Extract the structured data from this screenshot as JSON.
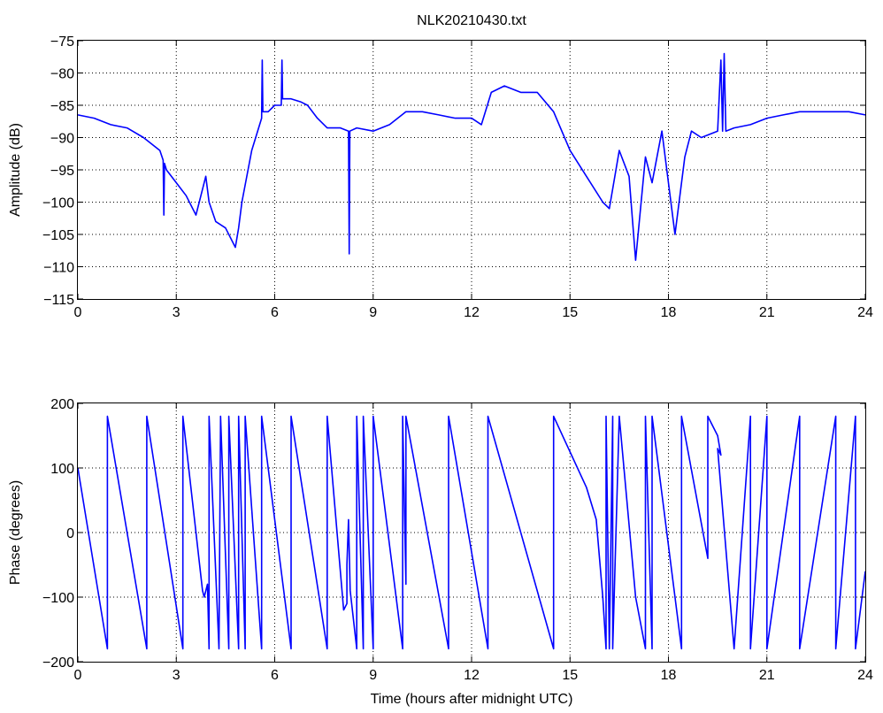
{
  "chart_data": [
    {
      "type": "line",
      "title": "NLK20210430.txt",
      "xlabel": "",
      "ylabel": "Amplitude (dB)",
      "xlim": [
        0,
        24
      ],
      "ylim": [
        -115,
        -75
      ],
      "grid": true,
      "x_ticks": [
        0,
        3,
        6,
        9,
        12,
        15,
        18,
        21,
        24
      ],
      "x_tick_labels": [
        "0",
        "3",
        "6",
        "9",
        "12",
        "15",
        "18",
        "21",
        "24"
      ],
      "y_ticks": [
        -115,
        -110,
        -105,
        -100,
        -95,
        -90,
        -85,
        -80,
        -75
      ],
      "y_tick_labels": [
        "−115",
        "−110",
        "−105",
        "−100",
        "−95",
        "−90",
        "−85",
        "−80",
        "−75"
      ],
      "color": "#0000ff",
      "series": [
        {
          "x": [
            0,
            0.5,
            1,
            1.5,
            2,
            2.5,
            2.6,
            2.62,
            2.64,
            2.7,
            3.0,
            3.3,
            3.6,
            3.9,
            4.0,
            4.2,
            4.5,
            4.8,
            4.9,
            5.0,
            5.3,
            5.6,
            5.62,
            5.64,
            5.8,
            6.0,
            6.2,
            6.22,
            6.24,
            6.5,
            6.8,
            7.0,
            7.3,
            7.6,
            8.0,
            8.25,
            8.27,
            8.29,
            8.5,
            9.0,
            9.5,
            10.0,
            10.5,
            11.0,
            11.5,
            12.0,
            12.3,
            12.6,
            13.0,
            13.5,
            14.0,
            14.5,
            15.0,
            15.5,
            16.0,
            16.2,
            16.5,
            16.8,
            17.0,
            17.3,
            17.5,
            17.8,
            18.2,
            18.5,
            18.7,
            19.0,
            19.5,
            19.6,
            19.65,
            19.7,
            19.75,
            20.0,
            20.5,
            21.0,
            21.5,
            22.0,
            22.5,
            23.0,
            23.5,
            24.0
          ],
          "y": [
            -86.5,
            -87,
            -88,
            -88.5,
            -90,
            -92,
            -93.5,
            -102,
            -94,
            -95,
            -97,
            -99,
            -102,
            -96,
            -100,
            -103,
            -104,
            -107,
            -104,
            -100,
            -92,
            -87,
            -78,
            -86,
            -86,
            -85,
            -85,
            -78,
            -84,
            -84,
            -84.5,
            -85,
            -87,
            -88.5,
            -88.5,
            -89,
            -108,
            -89,
            -88.5,
            -89,
            -88,
            -86,
            -86,
            -86.5,
            -87,
            -87,
            -88,
            -83,
            -82,
            -83,
            -83,
            -86,
            -92,
            -96,
            -100,
            -101,
            -92,
            -96,
            -109,
            -93,
            -97,
            -89,
            -105,
            -93,
            -89,
            -90,
            -89,
            -78,
            -89,
            -77,
            -89,
            -88.5,
            -88,
            -87,
            -86.5,
            -86,
            -86,
            -86,
            -86,
            -86.5
          ]
        }
      ]
    },
    {
      "type": "line",
      "title": "",
      "xlabel": "Time (hours after midnight UTC)",
      "ylabel": "Phase (degrees)",
      "xlim": [
        0,
        24
      ],
      "ylim": [
        -200,
        200
      ],
      "grid": true,
      "x_ticks": [
        0,
        3,
        6,
        9,
        12,
        15,
        18,
        21,
        24
      ],
      "x_tick_labels": [
        "0",
        "3",
        "6",
        "9",
        "12",
        "15",
        "18",
        "21",
        "24"
      ],
      "y_ticks": [
        -200,
        -100,
        0,
        100,
        200
      ],
      "y_tick_labels": [
        "−200",
        "−100",
        "0",
        "100",
        "200"
      ],
      "color": "#0000ff",
      "series": [
        {
          "x": [
            0,
            0.9,
            0.9,
            2.1,
            2.1,
            3.2,
            3.2,
            3.8,
            3.85,
            3.95,
            4.0,
            4.0,
            4.3,
            4.35,
            4.6,
            4.6,
            4.9,
            4.9,
            5.1,
            5.1,
            5.6,
            5.6,
            6.5,
            6.5,
            7.6,
            7.6,
            8.1,
            8.2,
            8.2,
            8.25,
            8.3,
            8.5,
            8.5,
            8.7,
            8.7,
            9.0,
            9.0,
            9.9,
            9.9,
            10.0,
            10.0,
            11.3,
            11.3,
            12.5,
            12.5,
            14.5,
            14.5,
            15.5,
            15.8,
            16.0,
            16.1,
            16.1,
            16.2,
            16.3,
            16.3,
            16.5,
            17.0,
            17.3,
            17.3,
            17.5,
            17.5,
            18.4,
            18.4,
            19.2,
            19.2,
            19.5,
            19.6,
            19.5,
            20.0,
            20.5,
            20.5,
            21.0,
            21.0,
            22.0,
            22.0,
            23.1,
            23.1,
            23.7,
            23.7,
            24.0
          ],
          "y": [
            100,
            -180,
            180,
            -180,
            180,
            -180,
            180,
            -90,
            -100,
            -80,
            -180,
            180,
            -180,
            180,
            -180,
            180,
            -180,
            180,
            -180,
            180,
            -180,
            180,
            -180,
            180,
            -180,
            180,
            -120,
            -110,
            -50,
            20,
            -90,
            -180,
            180,
            -180,
            180,
            -180,
            180,
            -180,
            180,
            -80,
            180,
            -180,
            180,
            -180,
            180,
            -180,
            180,
            70,
            20,
            -100,
            -180,
            180,
            -180,
            180,
            -180,
            180,
            -100,
            -180,
            180,
            -180,
            180,
            -180,
            180,
            -40,
            180,
            150,
            120,
            130,
            -180,
            180,
            -180,
            180,
            -180,
            180,
            -180,
            180,
            -180,
            180,
            -180,
            -60
          ]
        }
      ]
    }
  ]
}
